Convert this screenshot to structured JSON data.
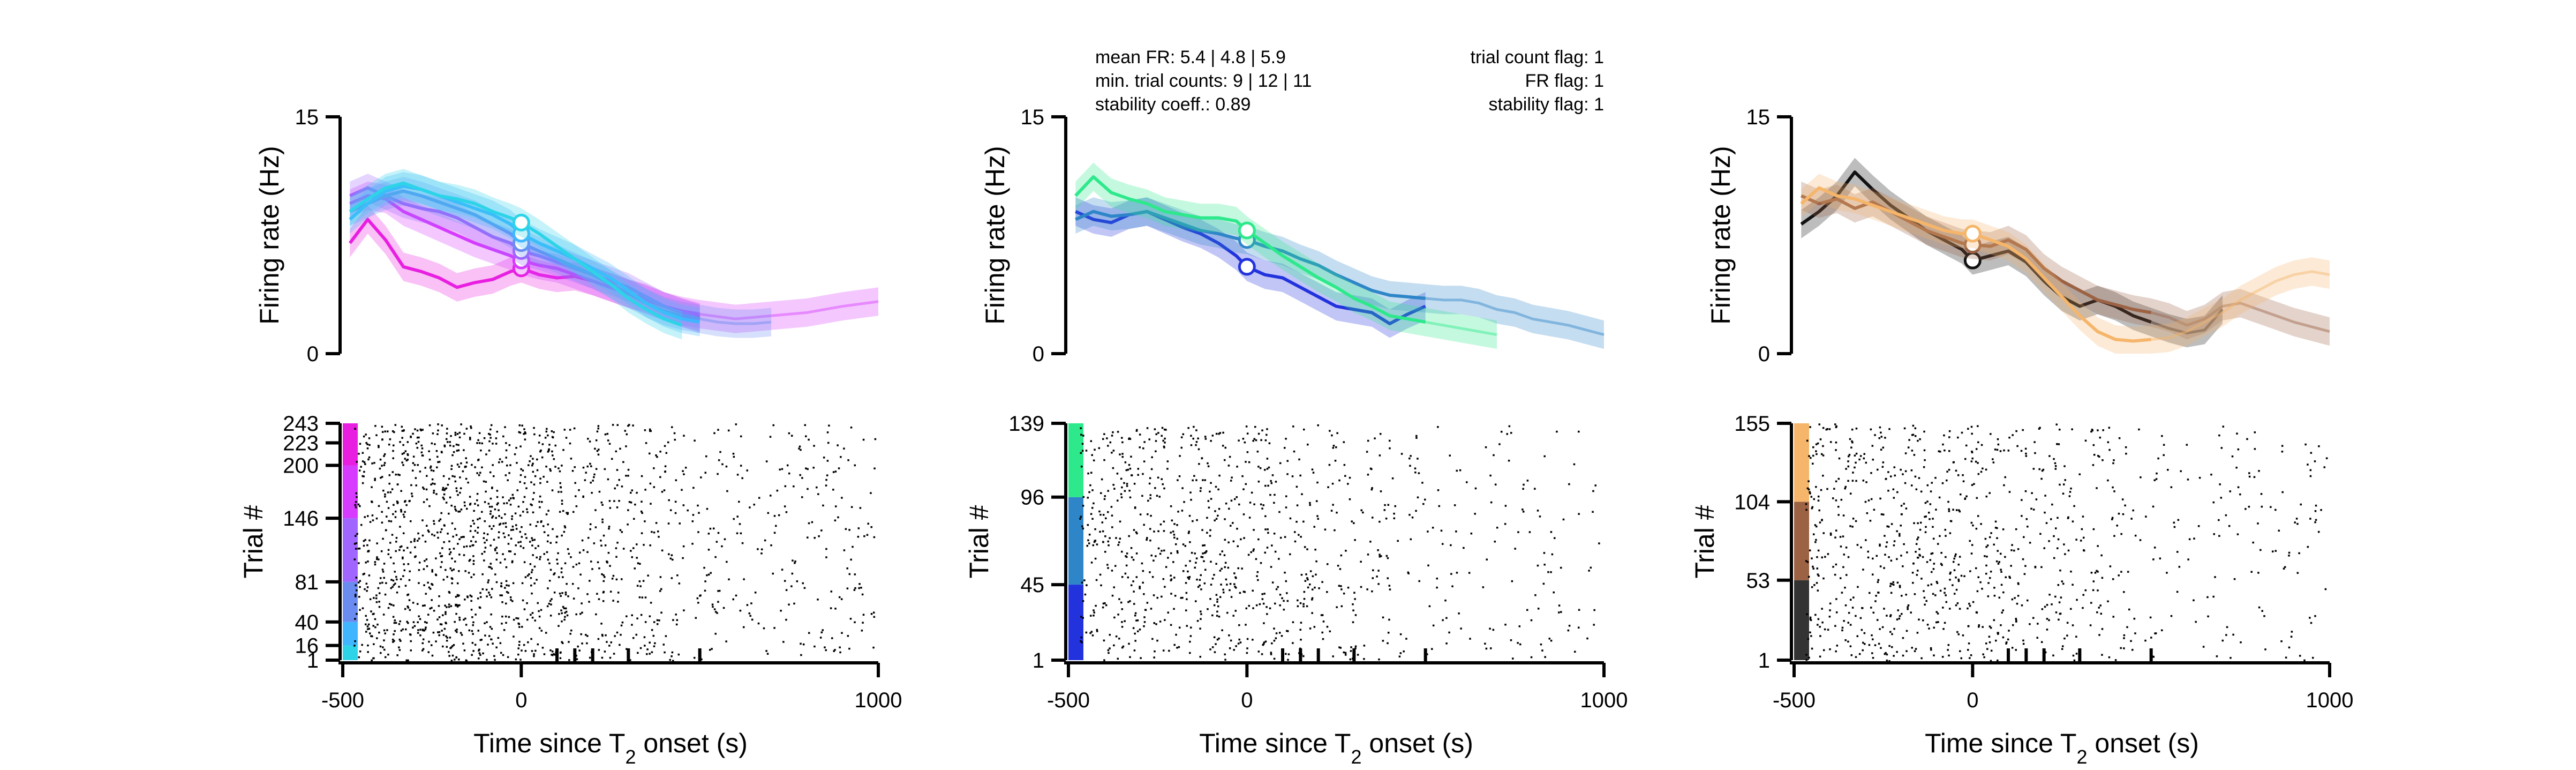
{
  "chart_data": [
    {
      "id": "left",
      "type": "line",
      "top": {
        "ylabel": "Firing rate (Hz)",
        "ylim": [
          0,
          15
        ],
        "yticks": [
          "0",
          "15"
        ],
        "xlim": [
          -500,
          1000
        ],
        "series": [
          {
            "color": "#e81fe0",
            "marker_y": 5.4,
            "x": [
              -480,
              -430,
              -380,
              -330,
              -280,
              -230,
              -180,
              -130,
              -80,
              -30,
              0,
              50,
              100,
              150,
              200,
              250,
              300,
              350,
              400,
              450,
              500
            ],
            "y": [
              7,
              8.5,
              7.2,
              5.5,
              5.2,
              4.8,
              4.2,
              4.5,
              4.7,
              5.2,
              5.4,
              5.0,
              4.8,
              4.9,
              4.6,
              4.2,
              3.8,
              3.5,
              3.0,
              2.6,
              2.3
            ]
          },
          {
            "color": "#d63bff",
            "marker_y": 5.9,
            "x": [
              -480,
              -430,
              -380,
              -330,
              -280,
              -230,
              -180,
              -130,
              -80,
              -30,
              0,
              50,
              100,
              150,
              200,
              250,
              300,
              350,
              400,
              450,
              500,
              600,
              700,
              800,
              900,
              1000
            ],
            "y": [
              9.5,
              10,
              9.8,
              9.0,
              8.5,
              8.0,
              7.5,
              7.0,
              6.6,
              6.2,
              5.9,
              5.6,
              5.4,
              5.0,
              4.6,
              4.2,
              3.8,
              3.4,
              3.0,
              2.7,
              2.5,
              2.2,
              2.4,
              2.6,
              3.0,
              3.3
            ]
          },
          {
            "color": "#a166ff",
            "marker_y": 6.5,
            "x": [
              -480,
              -430,
              -380,
              -330,
              -280,
              -230,
              -180,
              -130,
              -80,
              -30,
              0,
              50,
              100,
              150,
              200,
              250,
              300,
              350,
              400,
              450,
              500
            ],
            "y": [
              10,
              10.5,
              10,
              9.5,
              9.2,
              9.0,
              8.6,
              8.0,
              7.4,
              7.0,
              6.5,
              6.2,
              5.8,
              5.4,
              5.0,
              4.6,
              4.2,
              3.6,
              3.0,
              2.6,
              2.2
            ]
          },
          {
            "color": "#6a8cf0",
            "marker_y": 7.0,
            "x": [
              -480,
              -430,
              -380,
              -330,
              -280,
              -230,
              -180,
              -130,
              -80,
              -30,
              0,
              50,
              100,
              150,
              200,
              250,
              300,
              350,
              400,
              450,
              500,
              550,
              600,
              650,
              700
            ],
            "y": [
              9,
              9.5,
              10,
              10.3,
              10.0,
              9.6,
              9.2,
              8.8,
              8.2,
              7.6,
              7.0,
              6.5,
              6.0,
              5.5,
              5.0,
              4.4,
              3.8,
              3.2,
              2.7,
              2.4,
              2.2,
              2.0,
              1.9,
              1.9,
              2.0
            ]
          },
          {
            "color": "#3fb6ff",
            "marker_y": 7.6,
            "x": [
              -480,
              -430,
              -380,
              -330,
              -280,
              -230,
              -180,
              -130,
              -80,
              -30,
              0,
              50,
              100,
              150,
              200,
              250,
              300,
              350,
              400,
              450,
              500
            ],
            "y": [
              8.5,
              9.5,
              10.3,
              10.6,
              10.4,
              10.0,
              9.6,
              9.2,
              8.8,
              8.2,
              7.6,
              7.0,
              6.5,
              6.0,
              5.4,
              4.8,
              4.0,
              3.2,
              2.6,
              2.2,
              2.0
            ]
          },
          {
            "color": "#2dd4e8",
            "marker_y": 8.3,
            "x": [
              -480,
              -430,
              -380,
              -330,
              -280,
              -230,
              -180,
              -130,
              -80,
              -30,
              0,
              50,
              100,
              150,
              200,
              250,
              300,
              350,
              400,
              450
            ],
            "y": [
              9,
              9.8,
              10.5,
              10.8,
              10.4,
              10.0,
              9.8,
              9.5,
              9.0,
              8.6,
              8.3,
              7.6,
              6.8,
              6.0,
              5.2,
              4.4,
              3.5,
              2.8,
              2.2,
              1.8
            ]
          }
        ]
      },
      "bottom": {
        "ylabel": "Trial #",
        "yticks": [
          "1",
          "16",
          "40",
          "81",
          "146",
          "200",
          "223",
          "243"
        ],
        "ytick_values": [
          1,
          16,
          40,
          81,
          146,
          200,
          223,
          243
        ],
        "ylim": [
          1,
          243
        ],
        "xticks": [
          "-500",
          "0",
          "1000"
        ],
        "xtick_values": [
          -500,
          0,
          1000
        ],
        "minor_ticks": [
          100,
          150,
          200,
          300,
          500
        ],
        "xlabel_main": "Time since T",
        "xlabel_sub": "2",
        "xlabel_tail": " onset (s)",
        "color_blocks": [
          [
            1,
            16,
            "#2dd4e8"
          ],
          [
            16,
            40,
            "#3fb6ff"
          ],
          [
            40,
            81,
            "#6a8cf0"
          ],
          [
            81,
            146,
            "#a166ff"
          ],
          [
            146,
            200,
            "#d63bff"
          ],
          [
            200,
            243,
            "#e81fe0"
          ]
        ],
        "dot_counts": [
          1000,
          700
        ]
      }
    },
    {
      "id": "middle",
      "type": "line",
      "info": {
        "left": [
          "mean FR: 5.4 | 4.8 | 5.9",
          "min. trial counts: 9 | 12 | 11",
          "stability coeff.: 0.89"
        ],
        "right": [
          "trial count flag: 1",
          "FR flag: 1",
          "stability flag: 1"
        ]
      },
      "top": {
        "ylabel": "Firing rate (Hz)",
        "ylim": [
          0,
          15
        ],
        "yticks": [
          "0",
          "15"
        ],
        "xlim": [
          -500,
          1000
        ],
        "series": [
          {
            "color": "#2233dd",
            "marker_y": 5.5,
            "x": [
              -480,
              -430,
              -380,
              -330,
              -280,
              -230,
              -180,
              -130,
              -80,
              -30,
              0,
              50,
              100,
              150,
              200,
              250,
              300,
              350,
              400,
              450,
              500
            ],
            "y": [
              9.0,
              8.5,
              8.3,
              8.8,
              9.0,
              8.5,
              8.0,
              7.6,
              7.0,
              6.2,
              5.5,
              5.0,
              4.8,
              4.2,
              3.6,
              3.0,
              2.8,
              2.6,
              1.9,
              2.5,
              3.0
            ]
          },
          {
            "color": "#2e86c8",
            "marker_y": 7.2,
            "x": [
              -480,
              -430,
              -380,
              -330,
              -280,
              -230,
              -180,
              -130,
              -80,
              -30,
              0,
              50,
              100,
              150,
              200,
              250,
              300,
              350,
              400,
              450,
              500,
              550,
              600,
              650,
              700,
              750,
              800,
              850,
              900,
              950,
              1000
            ],
            "y": [
              8.5,
              9.0,
              8.7,
              8.8,
              9.0,
              8.6,
              8.2,
              7.8,
              7.6,
              7.3,
              7.2,
              6.8,
              6.5,
              6.0,
              5.6,
              5.0,
              4.5,
              4.0,
              3.7,
              3.6,
              3.5,
              3.4,
              3.4,
              3.2,
              2.8,
              2.6,
              2.2,
              2.0,
              1.8,
              1.5,
              1.2
            ]
          },
          {
            "color": "#2ee88c",
            "marker_y": 7.8,
            "x": [
              -480,
              -430,
              -380,
              -330,
              -280,
              -230,
              -180,
              -130,
              -80,
              -30,
              0,
              50,
              100,
              150,
              200,
              250,
              300,
              350,
              400,
              450,
              500,
              550,
              600,
              650,
              700
            ],
            "y": [
              10,
              11.2,
              10.2,
              9.8,
              9.5,
              9.0,
              8.8,
              8.6,
              8.6,
              8.4,
              7.8,
              7.0,
              6.2,
              5.5,
              4.8,
              4.2,
              3.5,
              3.0,
              2.4,
              2.2,
              2.0,
              1.8,
              1.6,
              1.4,
              1.2
            ]
          }
        ]
      },
      "bottom": {
        "ylabel": "Trial #",
        "yticks": [
          "1",
          "45",
          "96",
          "139"
        ],
        "ytick_values": [
          1,
          45,
          96,
          139
        ],
        "ylim": [
          1,
          139
        ],
        "xticks": [
          "-500",
          "0",
          "1000"
        ],
        "xtick_values": [
          -500,
          0,
          1000
        ],
        "minor_ticks": [
          100,
          150,
          200,
          300,
          500
        ],
        "xlabel_main": "Time since T",
        "xlabel_sub": "2",
        "xlabel_tail": " onset (s)",
        "color_blocks": [
          [
            1,
            45,
            "#2233dd"
          ],
          [
            45,
            96,
            "#2e86c8"
          ],
          [
            96,
            139,
            "#2ee88c"
          ]
        ],
        "dot_counts": [
          600,
          400
        ]
      }
    },
    {
      "id": "right",
      "type": "line",
      "top": {
        "ylabel": "Firing rate (Hz)",
        "ylim": [
          0,
          15
        ],
        "yticks": [
          "0",
          "15"
        ],
        "xlim": [
          -500,
          1000
        ],
        "series": [
          {
            "color": "#111111",
            "marker_y": 5.9,
            "x": [
              -480,
              -430,
              -380,
              -330,
              -280,
              -230,
              -180,
              -130,
              -80,
              -30,
              0,
              50,
              100,
              150,
              200,
              250,
              300,
              350,
              400,
              450,
              500,
              550,
              600,
              650,
              700
            ],
            "y": [
              8.2,
              9.0,
              10.0,
              11.5,
              10.4,
              9.4,
              8.6,
              7.8,
              7.2,
              6.6,
              5.9,
              6.2,
              6.5,
              5.8,
              4.6,
              3.6,
              3.0,
              3.4,
              3.0,
              2.4,
              2.0,
              1.6,
              1.3,
              1.5,
              2.8
            ]
          },
          {
            "color": "#9c6244",
            "marker_y": 6.9,
            "x": [
              -480,
              -430,
              -380,
              -330,
              -280,
              -230,
              -180,
              -130,
              -80,
              -30,
              0,
              50,
              100,
              150,
              200,
              250,
              300,
              350,
              400,
              450,
              500,
              550,
              600,
              650,
              700,
              750,
              800,
              850,
              900,
              950,
              1000
            ],
            "y": [
              10,
              9.5,
              9.8,
              9.2,
              9.6,
              9.0,
              8.4,
              7.8,
              7.4,
              7.0,
              6.9,
              6.8,
              7.2,
              6.6,
              5.4,
              4.6,
              4.0,
              3.4,
              3.1,
              2.8,
              2.6,
              2.3,
              1.8,
              2.2,
              3.0,
              3.2,
              2.8,
              2.4,
              2.0,
              1.7,
              1.4
            ]
          },
          {
            "color": "#f5b56a",
            "marker_y": 7.6,
            "x": [
              -480,
              -430,
              -380,
              -330,
              -280,
              -230,
              -180,
              -130,
              -80,
              -30,
              0,
              50,
              100,
              150,
              200,
              250,
              300,
              350,
              400,
              450,
              500,
              550,
              600,
              650,
              700,
              750,
              800,
              850,
              900,
              950,
              1000
            ],
            "y": [
              9.5,
              10.5,
              10,
              9.8,
              9.4,
              9.0,
              8.6,
              8.2,
              7.8,
              7.6,
              7.6,
              7.2,
              6.8,
              6.0,
              4.8,
              3.6,
              2.4,
              1.4,
              0.9,
              0.8,
              0.9,
              1.0,
              1.4,
              2.0,
              2.6,
              3.4,
              4.0,
              4.6,
              5.0,
              5.2,
              5.0
            ]
          }
        ]
      },
      "bottom": {
        "ylabel": "Trial #",
        "yticks": [
          "1",
          "53",
          "104",
          "155"
        ],
        "ytick_values": [
          1,
          53,
          104,
          155
        ],
        "ylim": [
          1,
          155
        ],
        "xticks": [
          "-500",
          "0",
          "1000"
        ],
        "xtick_values": [
          -500,
          0,
          1000
        ],
        "minor_ticks": [
          100,
          150,
          200,
          300,
          500
        ],
        "xlabel_main": "Time since T",
        "xlabel_sub": "2",
        "xlabel_tail": " onset (s)",
        "color_blocks": [
          [
            1,
            53,
            "#333333"
          ],
          [
            53,
            104,
            "#9c6244"
          ],
          [
            104,
            155,
            "#f5b56a"
          ]
        ],
        "dot_counts": [
          600,
          400
        ]
      }
    }
  ]
}
